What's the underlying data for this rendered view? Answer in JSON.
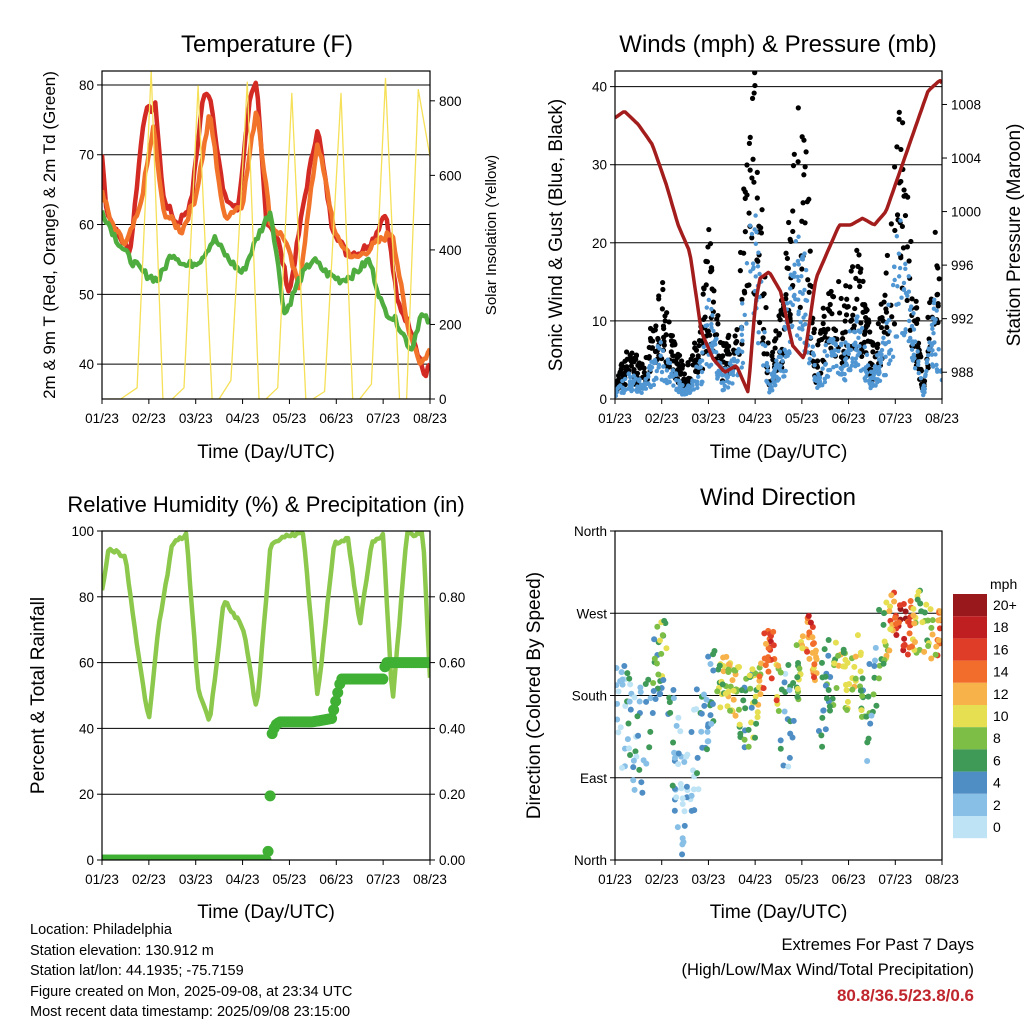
{
  "chart_data": [
    {
      "type": "line",
      "title": "Temperature (F)",
      "xlabel": "Time (Day/UTC)",
      "ylabel": "2m & 9m T (Red, Orange) & 2m Td (Green)",
      "y2label": "Solar Insolation (Yellow)",
      "x_ticks": [
        "01/23",
        "02/23",
        "03/23",
        "04/23",
        "05/23",
        "06/23",
        "07/23",
        "08/23"
      ],
      "ylim": [
        35,
        82
      ],
      "y_ticks": [
        40,
        50,
        60,
        70,
        80
      ],
      "y2lim": [
        0,
        880
      ],
      "y2_ticks": [
        0,
        200,
        400,
        600,
        800
      ],
      "grid": "horizontal",
      "series": [
        {
          "name": "2m T",
          "color": "#d42a24",
          "axis": "left",
          "x": [
            0,
            0.1,
            0.3,
            0.6,
            0.9,
            1.15,
            1.3,
            1.6,
            1.9,
            2.15,
            2.3,
            2.6,
            2.9,
            3.15,
            3.3,
            3.5,
            3.75,
            4.0,
            4.3,
            4.6,
            4.9,
            5.2,
            5.5,
            5.8,
            6.05,
            6.3,
            6.6,
            6.9,
            7.0
          ],
          "y": [
            70,
            62,
            59,
            56,
            76,
            77,
            64,
            60,
            63,
            78,
            79,
            64,
            62,
            78,
            80,
            61,
            58,
            50,
            63,
            74,
            60,
            56,
            56,
            58,
            62,
            49,
            45,
            38,
            40
          ]
        },
        {
          "name": "9m T",
          "color": "#f2742b",
          "axis": "left",
          "x": [
            0,
            0.2,
            0.5,
            0.8,
            1.1,
            1.3,
            1.7,
            2.0,
            2.3,
            2.6,
            3.0,
            3.3,
            3.6,
            3.9,
            4.2,
            4.6,
            5.0,
            5.4,
            5.8,
            6.2,
            6.5,
            6.8,
            7.0
          ],
          "y": [
            65,
            60,
            57,
            62,
            74,
            62,
            59,
            64,
            76,
            61,
            63,
            77,
            60,
            58,
            51,
            72,
            58,
            55,
            57,
            59,
            46,
            40,
            42
          ]
        },
        {
          "name": "2m Td",
          "color": "#4fad3f",
          "axis": "left",
          "x": [
            0,
            0.3,
            0.6,
            0.9,
            1.2,
            1.5,
            1.8,
            2.1,
            2.4,
            2.7,
            3.0,
            3.3,
            3.6,
            3.9,
            4.2,
            4.5,
            4.8,
            5.1,
            5.4,
            5.7,
            6.0,
            6.3,
            6.6,
            6.8,
            7.0
          ],
          "y": [
            62,
            58,
            55,
            53,
            52,
            56,
            54,
            55,
            58,
            55,
            53,
            58,
            62,
            47,
            52,
            55,
            53,
            52,
            53,
            55,
            48,
            46,
            42,
            47,
            46
          ]
        },
        {
          "name": "Solar Insolation",
          "color": "#f5e057",
          "axis": "right",
          "x": [
            0.1,
            0.4,
            0.75,
            1.05,
            1.3,
            1.5,
            1.75,
            2.05,
            2.35,
            2.5,
            2.75,
            3.1,
            3.35,
            3.5,
            3.75,
            4.05,
            4.35,
            4.5,
            4.75,
            5.1,
            5.35,
            5.5,
            5.75,
            6.05,
            6.35,
            6.5,
            6.75,
            7.0
          ],
          "y": [
            0,
            0,
            30,
            880,
            0,
            0,
            30,
            840,
            0,
            0,
            50,
            850,
            0,
            0,
            30,
            820,
            0,
            0,
            20,
            820,
            0,
            0,
            40,
            860,
            0,
            0,
            830,
            650
          ]
        }
      ]
    },
    {
      "type": "scatter",
      "title": "Winds (mph) & Pressure (mb)",
      "xlabel": "Time (Day/UTC)",
      "ylabel": "Sonic Wind & Gust (Blue, Black)",
      "y2label": "Station Pressure (Maroon)",
      "x_ticks": [
        "01/23",
        "02/23",
        "03/23",
        "04/23",
        "05/23",
        "06/23",
        "07/23",
        "08/23"
      ],
      "ylim": [
        0,
        42
      ],
      "y_ticks": [
        0,
        10,
        20,
        30,
        40
      ],
      "y2lim": [
        986,
        1010.5
      ],
      "y2_ticks": [
        988,
        992,
        996,
        1000,
        1004,
        1008
      ],
      "grid": "horizontal",
      "series": [
        {
          "name": "Gust",
          "color": "#000000",
          "x": [
            0,
            0.3,
            0.6,
            1.0,
            1.1,
            1.5,
            1.85,
            2.0,
            2.3,
            2.6,
            2.85,
            3.0,
            3.3,
            3.6,
            3.9,
            4.1,
            4.3,
            4.6,
            4.9,
            5.2,
            5.5,
            5.8,
            6.1,
            6.3,
            6.6,
            6.85,
            7.0
          ],
          "y": [
            2,
            6,
            4,
            14,
            10,
            3,
            9,
            20,
            6,
            9,
            32,
            38,
            4,
            12,
            34,
            28,
            5,
            15,
            12,
            18,
            6,
            14,
            36,
            20,
            2,
            20,
            12
          ]
        },
        {
          "name": "Wind",
          "color": "#5096d3",
          "x": [
            0,
            0.3,
            0.6,
            1.0,
            1.1,
            1.5,
            1.85,
            2.0,
            2.3,
            2.6,
            2.85,
            3.0,
            3.3,
            3.6,
            3.9,
            4.1,
            4.3,
            4.6,
            4.9,
            5.2,
            5.5,
            5.8,
            6.1,
            6.3,
            6.6,
            6.85,
            7.0
          ],
          "y": [
            1,
            3,
            2,
            7,
            5,
            1,
            5,
            12,
            3,
            5,
            18,
            24,
            2,
            7,
            20,
            16,
            2,
            8,
            6,
            10,
            3,
            8,
            22,
            14,
            1,
            12,
            5
          ]
        },
        {
          "name": "Pressure",
          "color": "#a31d1d",
          "axis": "right",
          "x": [
            0,
            0.2,
            0.5,
            0.8,
            1.1,
            1.35,
            1.6,
            1.85,
            2.1,
            2.35,
            2.6,
            2.85,
            3.0,
            3.1,
            3.3,
            3.55,
            3.8,
            4.05,
            4.3,
            4.55,
            4.8,
            5.05,
            5.3,
            5.55,
            5.8,
            6.1,
            6.4,
            6.7,
            6.95,
            7.0
          ],
          "y": [
            1007,
            1007.5,
            1006.5,
            1005,
            1002,
            999,
            997,
            991,
            989,
            988,
            988.5,
            986.5,
            993,
            995,
            995.5,
            994,
            990,
            989,
            995,
            997,
            999,
            999,
            999.5,
            999,
            1000,
            1003,
            1006,
            1009,
            1009.8,
            1009.6
          ]
        }
      ]
    },
    {
      "type": "line",
      "title": "Relative Humidity (%) & Precipitation (in)",
      "xlabel": "Time (Day/UTC)",
      "ylabel": "Percent & Total Rainfall",
      "x_ticks": [
        "01/23",
        "02/23",
        "03/23",
        "04/23",
        "05/23",
        "06/23",
        "07/23",
        "08/23"
      ],
      "ylim": [
        0,
        100
      ],
      "y_ticks": [
        0,
        20,
        40,
        60,
        80,
        100
      ],
      "y2lim": [
        0,
        1.0
      ],
      "y2_ticks": [
        "0.00",
        "0.20",
        "0.40",
        "0.60",
        "0.80"
      ],
      "grid": "horizontal",
      "series": [
        {
          "name": "Relative Humidity",
          "color": "#8cc84b",
          "axis": "left",
          "x": [
            0,
            0.15,
            0.5,
            0.8,
            1.0,
            1.2,
            1.5,
            1.8,
            2.05,
            2.3,
            2.6,
            2.9,
            3.05,
            3.3,
            3.6,
            4.0,
            4.3,
            4.6,
            4.95,
            5.25,
            5.5,
            5.75,
            6.0,
            6.2,
            6.5,
            6.85,
            7.0
          ],
          "y": [
            82,
            95,
            92,
            60,
            42,
            70,
            96,
            99,
            52,
            42,
            79,
            73,
            68,
            45,
            96,
            99,
            99,
            49,
            96,
            98,
            71,
            96,
            99,
            47,
            99,
            99,
            55
          ]
        },
        {
          "name": "Total Precipitation",
          "color": "#3fb034",
          "axis": "right",
          "x": [
            0,
            1.0,
            2.0,
            3.0,
            3.5,
            3.55,
            3.6,
            3.62,
            3.7,
            3.8,
            4.0,
            4.5,
            4.9,
            5.0,
            5.1,
            5.5,
            6.0,
            6.05,
            6.5,
            7.0
          ],
          "y": [
            0,
            0,
            0,
            0,
            0,
            0.03,
            0.25,
            0.38,
            0.41,
            0.42,
            0.42,
            0.42,
            0.43,
            0.49,
            0.55,
            0.55,
            0.55,
            0.6,
            0.6,
            0.6
          ]
        }
      ]
    },
    {
      "type": "scatter",
      "title": "Wind Direction",
      "xlabel": "Time (Day/UTC)",
      "ylabel": "Direction (Colored By Speed)",
      "x_ticks": [
        "01/23",
        "02/23",
        "03/23",
        "04/23",
        "05/23",
        "06/23",
        "07/23",
        "08/23"
      ],
      "ylim": [
        0,
        360
      ],
      "y_ticks": [
        "North",
        "East",
        "South",
        "West",
        "North"
      ],
      "grid": "horizontal",
      "colorbar": {
        "unit": "mph",
        "labels": [
          "0",
          "2",
          "4",
          "6",
          "8",
          "10",
          "12",
          "14",
          "16",
          "18",
          "20+"
        ],
        "colors": [
          "#bde3f5",
          "#87bfe6",
          "#4f8ec4",
          "#3f9a58",
          "#7dbe47",
          "#e6df52",
          "#f7b24a",
          "#f26c2c",
          "#df3d28",
          "#c01f22",
          "#98181b"
        ]
      },
      "series": [
        {
          "name": "Direction",
          "x": [
            0.1,
            0.3,
            0.6,
            0.8,
            0.9,
            1.0,
            1.1,
            1.3,
            1.5,
            1.8,
            2.0,
            2.3,
            2.5,
            2.8,
            3.0,
            3.2,
            3.4,
            3.6,
            3.8,
            4.0,
            4.2,
            4.4,
            4.6,
            4.8,
            5.0,
            5.2,
            5.4,
            5.7,
            6.0,
            6.2,
            6.5,
            6.8,
            7.0
          ],
          "y": [
            160,
            140,
            130,
            180,
            220,
            230,
            220,
            100,
            60,
            140,
            170,
            200,
            190,
            160,
            170,
            220,
            230,
            140,
            180,
            220,
            250,
            170,
            200,
            210,
            190,
            220,
            150,
            240,
            270,
            250,
            260,
            250,
            250
          ],
          "speed": [
            2,
            3,
            4,
            5,
            6,
            7,
            8,
            2,
            1,
            3,
            4,
            9,
            11,
            6,
            8,
            14,
            18,
            2,
            4,
            12,
            16,
            5,
            6,
            10,
            8,
            12,
            4,
            6,
            16,
            18,
            8,
            10,
            14
          ]
        }
      ]
    }
  ],
  "info": {
    "location": "Location: Philadelphia",
    "elevation": "Station elevation: 130.912 m",
    "latlon": "Station lat/lon: 44.1935; -75.7159",
    "created": "Figure created on Mon, 2025-09-08, at 23:34 UTC",
    "recent": "Most recent data timestamp: 2025/09/08 23:15:00"
  },
  "extremes": {
    "title": "Extremes For Past 7 Days",
    "subtitle": "(High/Low/Max Wind/Total Precipitation)",
    "values": "80.8/36.5/23.8/0.6"
  }
}
